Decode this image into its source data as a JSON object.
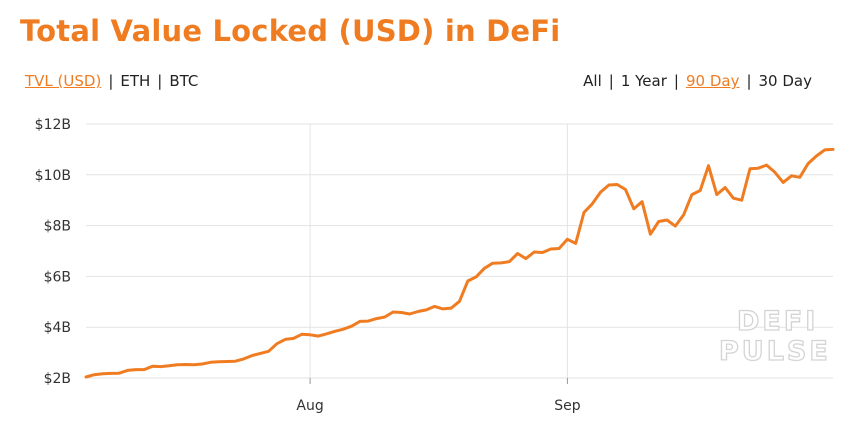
{
  "title": "Total Value Locked (USD) in DeFi",
  "currency_toggle": {
    "options": [
      "TVL (USD)",
      "ETH",
      "BTC"
    ],
    "selected": 0
  },
  "range_toggle": {
    "options": [
      "All",
      "1 Year",
      "90 Day",
      "30 Day"
    ],
    "selected": 2
  },
  "watermark": {
    "line1": "DEFI",
    "line2": "PULSE"
  },
  "colors": {
    "accent": "#f07c22",
    "grid": "#e3e3e3"
  },
  "chart_data": {
    "type": "line",
    "title": "Total Value Locked (USD) in DeFi",
    "xlabel": "",
    "ylabel": "",
    "y_ticks": [
      "$2B",
      "$4B",
      "$6B",
      "$8B",
      "$10B",
      "$12B"
    ],
    "y_tick_values": [
      2,
      4,
      6,
      8,
      10,
      12
    ],
    "ylim": [
      2,
      12
    ],
    "x_ticks": [
      {
        "label": "Aug",
        "date": "2020-08-01"
      },
      {
        "label": "Sep",
        "date": "2020-09-01"
      }
    ],
    "xlim": [
      "2020-07-05",
      "2020-10-03"
    ],
    "grid": true,
    "series": [
      {
        "color": "#f07c22",
        "points": [
          [
            "2020-07-05",
            2.04
          ],
          [
            "2020-07-06",
            2.13
          ],
          [
            "2020-07-07",
            2.17
          ],
          [
            "2020-07-08",
            2.18
          ],
          [
            "2020-07-09",
            2.19
          ],
          [
            "2020-07-10",
            2.3
          ],
          [
            "2020-07-11",
            2.33
          ],
          [
            "2020-07-12",
            2.33
          ],
          [
            "2020-07-13",
            2.46
          ],
          [
            "2020-07-14",
            2.45
          ],
          [
            "2020-07-15",
            2.48
          ],
          [
            "2020-07-16",
            2.52
          ],
          [
            "2020-07-17",
            2.53
          ],
          [
            "2020-07-18",
            2.52
          ],
          [
            "2020-07-19",
            2.55
          ],
          [
            "2020-07-20",
            2.62
          ],
          [
            "2020-07-21",
            2.64
          ],
          [
            "2020-07-22",
            2.65
          ],
          [
            "2020-07-23",
            2.66
          ],
          [
            "2020-07-24",
            2.75
          ],
          [
            "2020-07-25",
            2.88
          ],
          [
            "2020-07-26",
            2.97
          ],
          [
            "2020-07-27",
            3.05
          ],
          [
            "2020-07-28",
            3.35
          ],
          [
            "2020-07-29",
            3.52
          ],
          [
            "2020-07-30",
            3.56
          ],
          [
            "2020-07-31",
            3.72
          ],
          [
            "2020-08-01",
            3.7
          ],
          [
            "2020-08-02",
            3.65
          ],
          [
            "2020-08-03",
            3.74
          ],
          [
            "2020-08-04",
            3.84
          ],
          [
            "2020-08-05",
            3.92
          ],
          [
            "2020-08-06",
            4.04
          ],
          [
            "2020-08-07",
            4.23
          ],
          [
            "2020-08-08",
            4.24
          ],
          [
            "2020-08-09",
            4.34
          ],
          [
            "2020-08-10",
            4.4
          ],
          [
            "2020-08-11",
            4.6
          ],
          [
            "2020-08-12",
            4.58
          ],
          [
            "2020-08-13",
            4.52
          ],
          [
            "2020-08-14",
            4.62
          ],
          [
            "2020-08-15",
            4.68
          ],
          [
            "2020-08-16",
            4.82
          ],
          [
            "2020-08-17",
            4.72
          ],
          [
            "2020-08-18",
            4.75
          ],
          [
            "2020-08-19",
            5.02
          ],
          [
            "2020-08-20",
            5.82
          ],
          [
            "2020-08-21",
            5.98
          ],
          [
            "2020-08-22",
            6.32
          ],
          [
            "2020-08-23",
            6.52
          ],
          [
            "2020-08-24",
            6.53
          ],
          [
            "2020-08-25",
            6.58
          ],
          [
            "2020-08-26",
            6.9
          ],
          [
            "2020-08-27",
            6.7
          ],
          [
            "2020-08-28",
            6.96
          ],
          [
            "2020-08-29",
            6.94
          ],
          [
            "2020-08-30",
            7.08
          ],
          [
            "2020-08-31",
            7.1
          ],
          [
            "2020-09-01",
            7.46
          ],
          [
            "2020-09-02",
            7.3
          ],
          [
            "2020-09-03",
            8.52
          ],
          [
            "2020-09-04",
            8.86
          ],
          [
            "2020-09-05",
            9.32
          ],
          [
            "2020-09-06",
            9.6
          ],
          [
            "2020-09-07",
            9.62
          ],
          [
            "2020-09-08",
            9.42
          ],
          [
            "2020-09-09",
            8.66
          ],
          [
            "2020-09-10",
            8.94
          ],
          [
            "2020-09-11",
            7.66
          ],
          [
            "2020-09-12",
            8.16
          ],
          [
            "2020-09-13",
            8.22
          ],
          [
            "2020-09-14",
            7.98
          ],
          [
            "2020-09-15",
            8.42
          ],
          [
            "2020-09-16",
            9.22
          ],
          [
            "2020-09-17",
            9.38
          ],
          [
            "2020-09-18",
            10.36
          ],
          [
            "2020-09-19",
            9.22
          ],
          [
            "2020-09-20",
            9.5
          ],
          [
            "2020-09-21",
            9.08
          ],
          [
            "2020-09-22",
            9.0
          ],
          [
            "2020-09-23",
            10.24
          ],
          [
            "2020-09-24",
            10.26
          ],
          [
            "2020-09-25",
            10.38
          ],
          [
            "2020-09-26",
            10.1
          ],
          [
            "2020-09-27",
            9.7
          ],
          [
            "2020-09-28",
            9.96
          ],
          [
            "2020-09-29",
            9.9
          ],
          [
            "2020-09-30",
            10.44
          ],
          [
            "2020-10-01",
            10.74
          ],
          [
            "2020-10-02",
            10.98
          ],
          [
            "2020-10-03",
            11.0
          ]
        ]
      }
    ]
  }
}
